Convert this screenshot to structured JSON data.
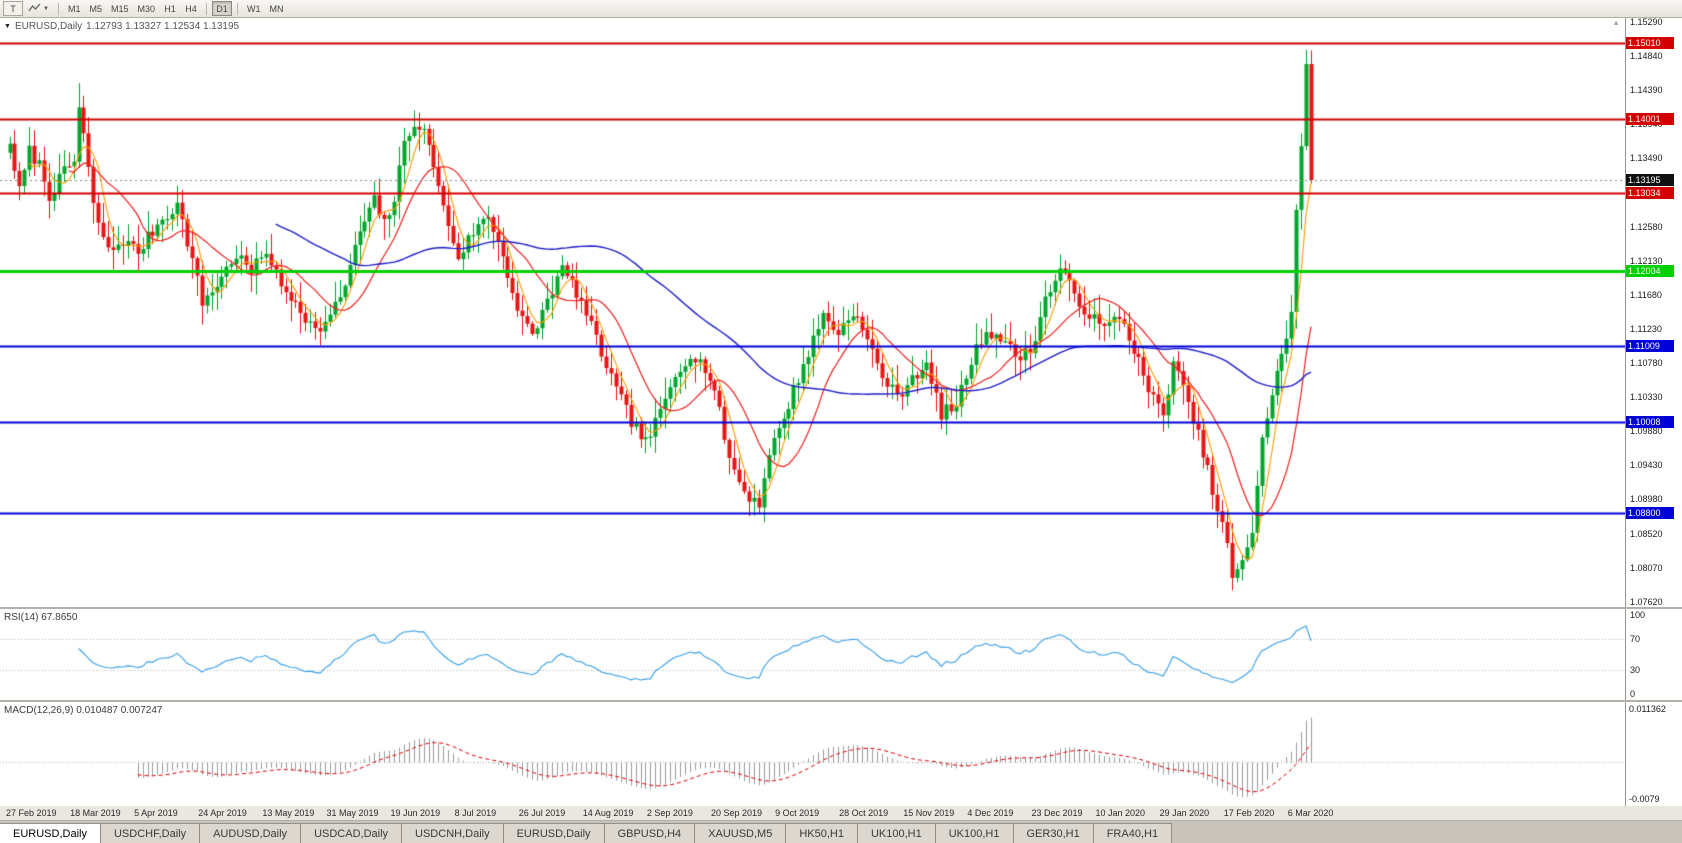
{
  "toolbar": {
    "template_button_label": "T",
    "timeframes": [
      "M1",
      "M5",
      "M15",
      "M30",
      "H1",
      "H4",
      "D1",
      "W1",
      "MN"
    ],
    "active_timeframe": "D1"
  },
  "chart_header": {
    "title": "EURUSD,Daily",
    "ohlc": "1.12793 1.13327 1.12534 1.13195"
  },
  "rsi_panel": {
    "label": "RSI(14) 67.8650"
  },
  "macd_panel": {
    "label": "MACD(12,26,9) 0.010487 0.007247"
  },
  "tabs": [
    {
      "label": "EURUSD,Daily",
      "active": true
    },
    {
      "label": "USDCHF,Daily",
      "active": false
    },
    {
      "label": "AUDUSD,Daily",
      "active": false
    },
    {
      "label": "USDCAD,Daily",
      "active": false
    },
    {
      "label": "USDCNH,Daily",
      "active": false
    },
    {
      "label": "EURUSD,Daily",
      "active": false
    },
    {
      "label": "GBPUSD,H4",
      "active": false
    },
    {
      "label": "XAUUSD,M5",
      "active": false
    },
    {
      "label": "HK50,H1",
      "active": false
    },
    {
      "label": "UK100,H1",
      "active": false
    },
    {
      "label": "UK100,H1",
      "active": false
    },
    {
      "label": "GER30,H1",
      "active": false
    },
    {
      "label": "FRA40,H1",
      "active": false
    }
  ],
  "chart_data": {
    "type": "candlestick",
    "symbol": "EURUSD",
    "timeframe": "Daily",
    "current_ohlc": {
      "open": 1.12793,
      "high": 1.13327,
      "low": 1.12534,
      "close": 1.13195
    },
    "y_range": [
      1.0756,
      1.1534
    ],
    "y_tick_labels": [
      "1.15290",
      "1.14840",
      "1.14390",
      "1.13940",
      "1.13490",
      "1.13040",
      "1.12580",
      "1.12130",
      "1.11680",
      "1.11230",
      "1.10780",
      "1.10330",
      "1.09880",
      "1.09430",
      "1.08980",
      "1.08520",
      "1.08070",
      "1.07620"
    ],
    "x_tick_labels": [
      "27 Feb 2019",
      "18 Mar 2019",
      "5 Apr 2019",
      "24 Apr 2019",
      "13 May 2019",
      "31 May 2019",
      "19 Jun 2019",
      "8 Jul 2019",
      "26 Jul 2019",
      "14 Aug 2019",
      "2 Sep 2019",
      "20 Sep 2019",
      "9 Oct 2019",
      "28 Oct 2019",
      "15 Nov 2019",
      "4 Dec 2019",
      "23 Dec 2019",
      "10 Jan 2020",
      "29 Jan 2020",
      "17 Feb 2020",
      "6 Mar 2020"
    ],
    "x_label_every_n_candles": 13,
    "num_candles": 265,
    "x_start": 8,
    "x_spacing": 4.93,
    "colors": {
      "up": "#00a62c",
      "down": "#e81515",
      "ma_fast": "#ff9c00",
      "ma_mid": "#f02020",
      "ma_slow": "#2020cc"
    },
    "ma_periods": {
      "fast": 5,
      "mid": 13,
      "slow": 55
    },
    "levels": [
      {
        "label": "1.15010",
        "value": 1.1501,
        "color": "#d40000",
        "width": 2
      },
      {
        "label": "1.14001",
        "value": 1.14001,
        "color": "#d40000",
        "width": 2
      },
      {
        "label": "1.13034",
        "value": 1.13034,
        "color": "#d40000",
        "width": 2
      },
      {
        "label": "1.12004",
        "value": 1.12004,
        "color": "#00d000",
        "width": 3
      },
      {
        "label": "1.11009",
        "value": 1.11009,
        "color": "#0000d8",
        "width": 2
      },
      {
        "label": "1.10008",
        "value": 1.10008,
        "color": "#0000d8",
        "width": 2
      },
      {
        "label": "1.08800",
        "value": 1.088,
        "color": "#0000d8",
        "width": 2
      }
    ],
    "current_price": {
      "label": "1.13195",
      "value": 1.13195,
      "color": "#101010"
    },
    "rsi": {
      "period": 14,
      "current": 67.865,
      "line_color": "#3aa0e8",
      "guide_levels": [
        70,
        30
      ],
      "ticks": [
        {
          "label": "100",
          "value": 100
        },
        {
          "label": "70",
          "value": 70
        },
        {
          "label": "30",
          "value": 30
        },
        {
          "label": "0",
          "value": 0
        }
      ]
    },
    "macd": {
      "fast": 12,
      "slow": 26,
      "signal": 9,
      "current_macd": 0.010487,
      "current_signal": 0.007247,
      "scale_max": 0.011362,
      "scale_min": -0.0079,
      "max_label": "0.011362",
      "min_label": "-0.0079",
      "histogram_color": "#9c9c9c",
      "signal_color": "#e00000"
    },
    "close_anchors": [
      [
        0,
        1.1368
      ],
      [
        2,
        1.1305
      ],
      [
        4,
        1.1358
      ],
      [
        6,
        1.134
      ],
      [
        8,
        1.13
      ],
      [
        11,
        1.133
      ],
      [
        13,
        1.1345
      ],
      [
        14,
        1.1415
      ],
      [
        15,
        1.138
      ],
      [
        17,
        1.1285
      ],
      [
        20,
        1.1225
      ],
      [
        23,
        1.124
      ],
      [
        26,
        1.1225
      ],
      [
        30,
        1.1262
      ],
      [
        34,
        1.1288
      ],
      [
        37,
        1.1215
      ],
      [
        39,
        1.1158
      ],
      [
        42,
        1.1182
      ],
      [
        46,
        1.1222
      ],
      [
        49,
        1.1198
      ],
      [
        52,
        1.1228
      ],
      [
        55,
        1.1178
      ],
      [
        58,
        1.116
      ],
      [
        62,
        1.112
      ],
      [
        65,
        1.1138
      ],
      [
        68,
        1.1182
      ],
      [
        71,
        1.1252
      ],
      [
        74,
        1.1292
      ],
      [
        76,
        1.1262
      ],
      [
        78,
        1.1295
      ],
      [
        80,
        1.1368
      ],
      [
        82,
        1.1398
      ],
      [
        84,
        1.1382
      ],
      [
        86,
        1.1342
      ],
      [
        88,
        1.1282
      ],
      [
        91,
        1.1218
      ],
      [
        94,
        1.1252
      ],
      [
        97,
        1.1272
      ],
      [
        100,
        1.1222
      ],
      [
        103,
        1.1148
      ],
      [
        106,
        1.1112
      ],
      [
        109,
        1.1162
      ],
      [
        112,
        1.1202
      ],
      [
        115,
        1.1172
      ],
      [
        117,
        1.1142
      ],
      [
        120,
        1.1092
      ],
      [
        123,
        1.1042
      ],
      [
        126,
        1.1002
      ],
      [
        129,
        1.0972
      ],
      [
        132,
        1.1012
      ],
      [
        135,
        1.1062
      ],
      [
        138,
        1.1092
      ],
      [
        141,
        1.1072
      ],
      [
        143,
        1.1042
      ],
      [
        146,
        1.0952
      ],
      [
        149,
        1.0908
      ],
      [
        152,
        1.0892
      ],
      [
        154,
        1.0962
      ],
      [
        156,
        1.0988
      ],
      [
        159,
        1.1042
      ],
      [
        162,
        1.1092
      ],
      [
        165,
        1.1142
      ],
      [
        168,
        1.1118
      ],
      [
        171,
        1.1148
      ],
      [
        174,
        1.1108
      ],
      [
        177,
        1.1062
      ],
      [
        180,
        1.1032
      ],
      [
        183,
        1.1062
      ],
      [
        186,
        1.1072
      ],
      [
        189,
        1.1012
      ],
      [
        192,
        1.1022
      ],
      [
        195,
        1.1082
      ],
      [
        198,
        1.1122
      ],
      [
        201,
        1.1112
      ],
      [
        204,
        1.1088
      ],
      [
        207,
        1.1092
      ],
      [
        210,
        1.1162
      ],
      [
        213,
        1.1202
      ],
      [
        216,
        1.1168
      ],
      [
        219,
        1.1142
      ],
      [
        222,
        1.1122
      ],
      [
        225,
        1.1142
      ],
      [
        228,
        1.1098
      ],
      [
        231,
        1.1042
      ],
      [
        234,
        1.1008
      ],
      [
        236,
        1.1082
      ],
      [
        239,
        1.1022
      ],
      [
        242,
        1.0962
      ],
      [
        245,
        1.0882
      ],
      [
        247,
        1.0842
      ],
      [
        248,
        1.0792
      ],
      [
        250,
        1.0812
      ],
      [
        252,
        1.0858
      ],
      [
        254,
        1.0982
      ],
      [
        256,
        1.1032
      ],
      [
        258,
        1.1092
      ],
      [
        260,
        1.1142
      ],
      [
        261,
        1.1282
      ],
      [
        262,
        1.1362
      ],
      [
        263,
        1.1468
      ],
      [
        264,
        1.132
      ]
    ],
    "spikes": [
      {
        "day": 14,
        "high": 1.1448
      },
      {
        "day": 82,
        "high": 1.1412
      },
      {
        "day": 152,
        "low": 1.0879
      },
      {
        "day": 248,
        "low": 1.0778
      },
      {
        "day": 263,
        "high": 1.1492
      }
    ]
  }
}
